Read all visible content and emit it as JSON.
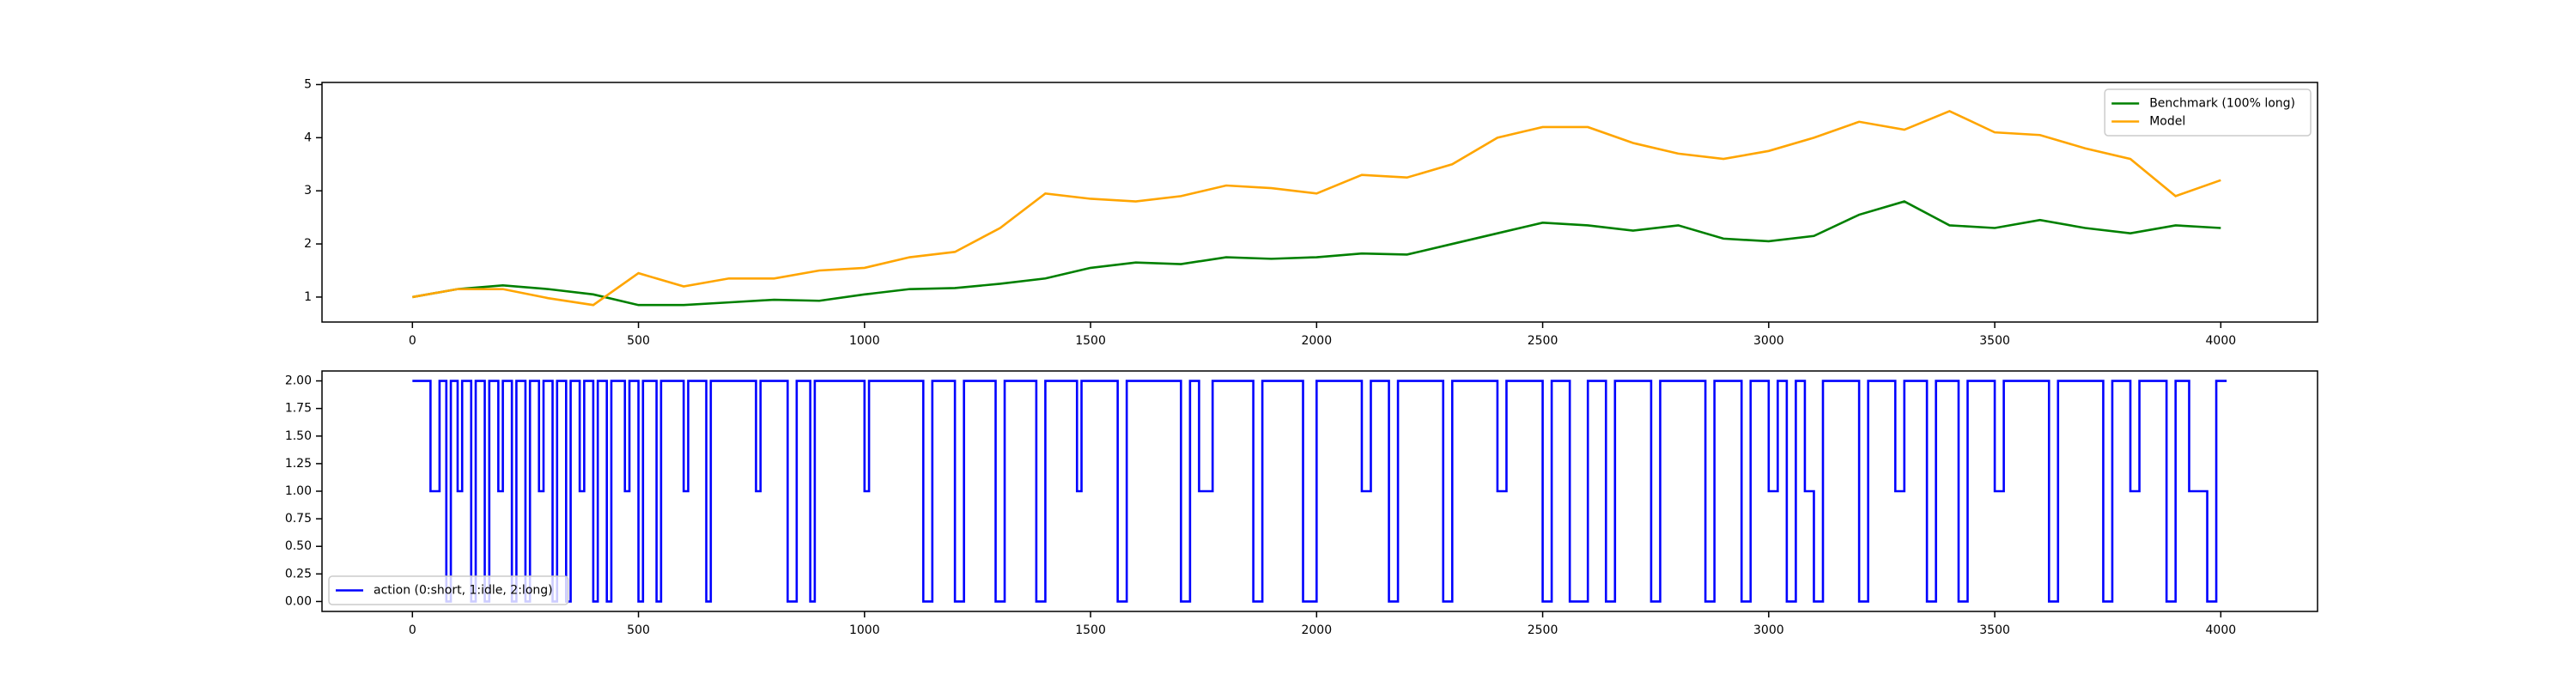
{
  "chart_data": [
    {
      "type": "line",
      "x": [
        0,
        100,
        200,
        300,
        400,
        500,
        600,
        700,
        800,
        900,
        1000,
        1100,
        1200,
        1300,
        1400,
        1500,
        1600,
        1700,
        1800,
        1900,
        2000,
        2100,
        2200,
        2300,
        2400,
        2500,
        2600,
        2700,
        2800,
        2900,
        3000,
        3100,
        3200,
        3300,
        3400,
        3500,
        3600,
        3700,
        3800,
        3900,
        4000
      ],
      "series": [
        {
          "name": "Benchmark (100% long)",
          "color": "#008000",
          "values": [
            1.0,
            1.15,
            1.22,
            1.15,
            1.05,
            0.85,
            0.85,
            0.9,
            0.95,
            0.93,
            1.05,
            1.15,
            1.17,
            1.25,
            1.35,
            1.55,
            1.65,
            1.62,
            1.75,
            1.72,
            1.75,
            1.82,
            1.8,
            2.0,
            2.2,
            2.4,
            2.35,
            2.25,
            2.35,
            2.1,
            2.05,
            2.15,
            2.55,
            2.8,
            2.35,
            2.3,
            2.45,
            2.3,
            2.2,
            2.35,
            2.3
          ]
        },
        {
          "name": "Model",
          "color": "#ffa500",
          "values": [
            1.0,
            1.15,
            1.15,
            0.98,
            0.85,
            1.45,
            1.2,
            1.35,
            1.35,
            1.5,
            1.55,
            1.75,
            1.85,
            2.3,
            2.95,
            2.85,
            2.8,
            2.9,
            3.1,
            3.05,
            2.95,
            3.3,
            3.25,
            3.5,
            4.0,
            4.2,
            4.2,
            3.9,
            3.7,
            3.6,
            3.75,
            4.0,
            4.3,
            4.15,
            4.5,
            4.1,
            4.05,
            3.8,
            3.6,
            2.9,
            3.2
          ]
        }
      ],
      "xlim": [
        -200,
        4214
      ],
      "ylim": [
        0.53,
        5.04
      ],
      "xticks": [
        0,
        500,
        1000,
        1500,
        2000,
        2500,
        3000,
        3500,
        4000
      ],
      "yticks": [
        1,
        2,
        3,
        4,
        5
      ],
      "legend": "upper right"
    },
    {
      "type": "step",
      "x": [
        0,
        40,
        60,
        75,
        85,
        100,
        110,
        130,
        140,
        160,
        170,
        190,
        200,
        220,
        230,
        250,
        260,
        280,
        290,
        310,
        320,
        340,
        350,
        370,
        380,
        400,
        410,
        430,
        440,
        470,
        480,
        500,
        510,
        540,
        550,
        600,
        610,
        650,
        660,
        760,
        770,
        830,
        850,
        880,
        890,
        1000,
        1010,
        1130,
        1150,
        1200,
        1220,
        1290,
        1310,
        1380,
        1400,
        1470,
        1480,
        1560,
        1580,
        1700,
        1720,
        1740,
        1770,
        1860,
        1880,
        1970,
        2000,
        2100,
        2120,
        2160,
        2180,
        2280,
        2300,
        2400,
        2420,
        2500,
        2520,
        2560,
        2600,
        2640,
        2660,
        2740,
        2760,
        2860,
        2880,
        2940,
        2960,
        3000,
        3020,
        3040,
        3060,
        3080,
        3100,
        3120,
        3200,
        3220,
        3280,
        3300,
        3350,
        3370,
        3420,
        3440,
        3500,
        3520,
        3620,
        3640,
        3740,
        3760,
        3800,
        3820,
        3880,
        3900,
        3930,
        3970,
        3990,
        4013
      ],
      "series": [
        {
          "name": "action (0:short, 1:idle, 2:long)",
          "color": "#0000ff",
          "values": [
            2,
            1,
            2,
            0,
            2,
            1,
            2,
            0,
            2,
            0,
            2,
            1,
            2,
            0,
            2,
            0,
            2,
            1,
            2,
            0,
            2,
            0,
            2,
            1,
            2,
            0,
            2,
            0,
            2,
            1,
            2,
            0,
            2,
            0,
            2,
            1,
            2,
            0,
            2,
            1,
            2,
            0,
            2,
            0,
            2,
            1,
            2,
            0,
            2,
            0,
            2,
            0,
            2,
            0,
            2,
            1,
            2,
            0,
            2,
            0,
            2,
            1,
            2,
            0,
            2,
            0,
            2,
            1,
            2,
            0,
            2,
            0,
            2,
            1,
            2,
            0,
            2,
            0,
            2,
            0,
            2,
            0,
            2,
            0,
            2,
            0,
            2,
            1,
            2,
            0,
            2,
            1,
            0,
            2,
            0,
            2,
            1,
            2,
            0,
            2,
            0,
            2,
            1,
            2,
            0,
            2,
            0,
            2,
            1,
            2,
            0,
            2,
            1,
            0,
            2,
            2
          ]
        }
      ],
      "xlim": [
        -200,
        4214
      ],
      "ylim": [
        -0.09,
        2.09
      ],
      "xticks": [
        0,
        500,
        1000,
        1500,
        2000,
        2500,
        3000,
        3500,
        4000
      ],
      "yticks": [
        {
          "value": 0,
          "label": "0.00"
        },
        {
          "value": 0.25,
          "label": "0.25"
        },
        {
          "value": 0.5,
          "label": "0.50"
        },
        {
          "value": 0.75,
          "label": "0.75"
        },
        {
          "value": 1,
          "label": "1.00"
        },
        {
          "value": 1.25,
          "label": "1.25"
        },
        {
          "value": 1.5,
          "label": "1.50"
        },
        {
          "value": 1.75,
          "label": "1.75"
        },
        {
          "value": 2,
          "label": "2.00"
        }
      ],
      "legend": "lower left"
    }
  ]
}
